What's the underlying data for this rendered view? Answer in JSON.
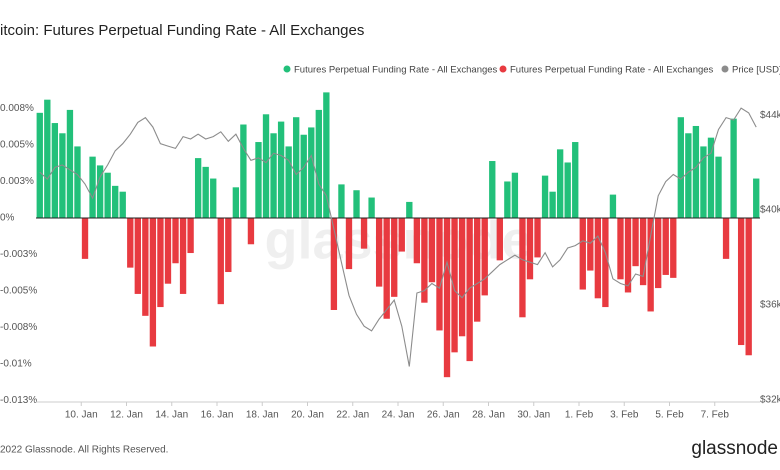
{
  "chart_data": {
    "type": "bar",
    "title": "itcoin: Futures Perpetual Funding Rate - All Exchanges",
    "watermark": "glassnode",
    "footer": "2022 Glassnode. All Rights Reserved.",
    "logo": "glassnode",
    "categories": [
      null,
      null,
      null,
      null,
      null,
      null,
      "10. Jan",
      null,
      null,
      null,
      null,
      null,
      "12. Jan",
      null,
      null,
      null,
      null,
      null,
      "14. Jan",
      null,
      null,
      null,
      null,
      null,
      "16. Jan",
      null,
      null,
      null,
      null,
      null,
      "18. Jan",
      null,
      null,
      null,
      null,
      null,
      "20. Jan",
      null,
      null,
      null,
      null,
      null,
      "22. Jan",
      null,
      null,
      null,
      null,
      null,
      "24. Jan",
      null,
      null,
      null,
      null,
      null,
      "26. Jan",
      null,
      null,
      null,
      null,
      null,
      "28. Jan",
      null,
      null,
      null,
      null,
      null,
      "30. Jan",
      null,
      null,
      null,
      null,
      null,
      "1. Feb",
      null,
      null,
      null,
      null,
      null,
      "3. Feb",
      null,
      null,
      null,
      null,
      null,
      "5. Feb",
      null,
      null,
      null,
      null,
      null,
      "7. Feb",
      null,
      null,
      null,
      null,
      null
    ],
    "series": [
      {
        "name": "Futures Perpetual Funding Rate - All Exchanges",
        "color": "#22c07a",
        "values": [
          0.0072,
          0.0081,
          0.0065,
          0.0058,
          0.0074,
          0.0049,
          null,
          0.0042,
          0.0036,
          0.0031,
          0.0022,
          0.0018,
          null,
          null,
          null,
          null,
          null,
          null,
          null,
          null,
          null,
          0.0041,
          0.0035,
          0.0027,
          null,
          null,
          0.0021,
          0.0064,
          null,
          0.0052,
          0.0071,
          0.0058,
          0.0066,
          0.0049,
          0.0069,
          0.0057,
          0.0062,
          0.0074,
          0.0086,
          null,
          0.0023,
          null,
          0.0019,
          null,
          0.0014,
          null,
          null,
          null,
          null,
          0.0011,
          null,
          null,
          null,
          null,
          null,
          null,
          null,
          null,
          null,
          null,
          0.0039,
          null,
          0.0025,
          0.0031,
          null,
          null,
          null,
          0.0029,
          0.0018,
          0.0047,
          0.0038,
          0.0052,
          null,
          null,
          null,
          null,
          0.0016,
          null,
          null,
          null,
          null,
          null,
          null,
          null,
          null,
          0.0069,
          0.0058,
          0.0063,
          0.0049,
          0.0055,
          0.0042,
          null,
          0.0068,
          null,
          null,
          0.0027
        ]
      },
      {
        "name": "Futures Perpetual Funding Rate - All Exchanges",
        "color": "#e83a40",
        "values": [
          null,
          null,
          null,
          null,
          null,
          null,
          -0.0028,
          null,
          null,
          null,
          null,
          null,
          -0.0034,
          -0.0052,
          -0.0067,
          -0.0088,
          -0.0061,
          -0.0045,
          -0.0031,
          -0.0052,
          -0.0024,
          null,
          null,
          null,
          -0.0059,
          -0.0037,
          null,
          null,
          -0.0018,
          null,
          null,
          null,
          null,
          null,
          null,
          null,
          null,
          null,
          null,
          -0.0063,
          null,
          -0.0035,
          null,
          -0.0021,
          null,
          -0.0047,
          -0.0069,
          -0.0054,
          -0.0023,
          null,
          -0.0031,
          -0.0058,
          -0.0044,
          -0.0077,
          -0.0109,
          -0.0092,
          -0.0081,
          -0.0098,
          -0.0071,
          -0.0053,
          null,
          -0.0029,
          null,
          null,
          -0.0068,
          -0.0042,
          -0.0027,
          null,
          null,
          null,
          null,
          null,
          -0.0049,
          -0.0036,
          -0.0055,
          -0.0061,
          null,
          -0.0042,
          -0.0051,
          -0.0033,
          -0.0046,
          -0.0064,
          -0.0048,
          -0.0039,
          -0.0041,
          null,
          null,
          null,
          null,
          null,
          null,
          -0.0028,
          null,
          -0.0087,
          -0.0094,
          null
        ]
      },
      {
        "name": "Price [USD]",
        "color": "#8c8c8c",
        "type": "line",
        "axis": "y2",
        "values": [
          41600,
          41300,
          41800,
          41900,
          41700,
          41500,
          41100,
          40500,
          41400,
          41900,
          42500,
          42800,
          43200,
          43700,
          43900,
          43500,
          42800,
          42700,
          42600,
          43100,
          43000,
          43200,
          43000,
          43100,
          43300,
          42900,
          43200,
          42600,
          42100,
          42200,
          42000,
          42400,
          42300,
          42100,
          41500,
          41800,
          42300,
          41100,
          40600,
          39200,
          37800,
          36400,
          35600,
          35100,
          34900,
          35400,
          35800,
          36200,
          35100,
          33400,
          36500,
          36600,
          36900,
          36700,
          37800,
          36600,
          36300,
          36700,
          36900,
          37100,
          37400,
          37700,
          37900,
          38100,
          37900,
          37800,
          37700,
          38200,
          37600,
          37900,
          38400,
          38500,
          38700,
          38600,
          38900,
          38200,
          37100,
          36900,
          36800,
          37300,
          37200,
          38900,
          40600,
          41200,
          41500,
          41300,
          41600,
          41800,
          42200,
          42400,
          43400,
          43900,
          43800,
          44300,
          44100,
          43500
        ]
      }
    ],
    "ylim": [
      -0.0126,
      0.0089
    ],
    "yticks": [
      {
        "value": 0.0075,
        "label": "0.008%"
      },
      {
        "value": 0.005,
        "label": "0.005%"
      },
      {
        "value": 0.0025,
        "label": "0.003%"
      },
      {
        "value": 0,
        "label": "0%"
      },
      {
        "value": -0.0025,
        "label": "-0.003%"
      },
      {
        "value": -0.005,
        "label": "-0.005%"
      },
      {
        "value": -0.0075,
        "label": "-0.008%"
      },
      {
        "value": -0.01,
        "label": "-0.01%"
      },
      {
        "value": -0.0125,
        "label": "-0.013%"
      }
    ],
    "y2lim": [
      31900,
      45150
    ],
    "y2ticks": [
      {
        "value": 44000,
        "label": "$44k"
      },
      {
        "value": 40000,
        "label": "$40k"
      },
      {
        "value": 36000,
        "label": "$36k"
      },
      {
        "value": 32000,
        "label": "$32k"
      }
    ],
    "grid": false
  }
}
